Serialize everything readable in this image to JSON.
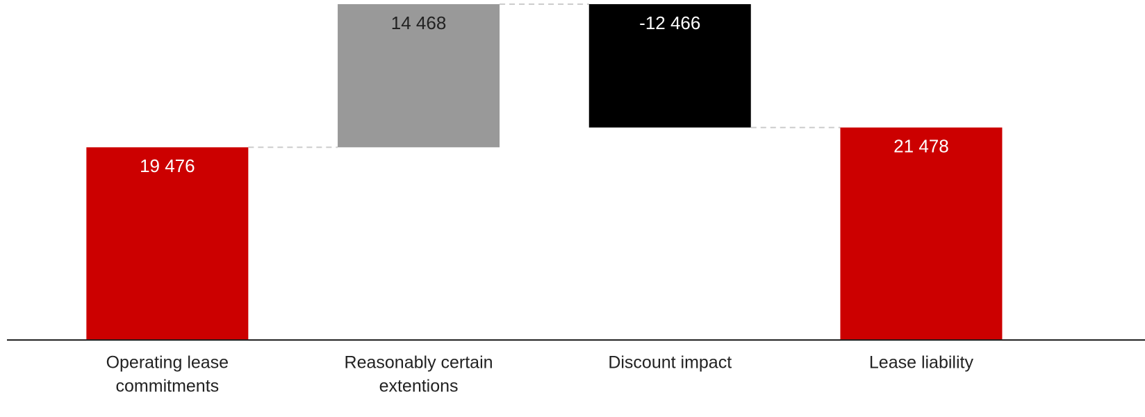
{
  "chart_data": {
    "type": "waterfall",
    "categories": [
      [
        "Operating lease",
        "commitments"
      ],
      [
        "Reasonably certain",
        "extentions"
      ],
      [
        "Discount impact"
      ],
      [
        "Lease liability"
      ]
    ],
    "values": [
      19476,
      14468,
      -12466,
      21478
    ],
    "value_labels": [
      "19 476",
      "14 468",
      "-12 466",
      "21 478"
    ],
    "bar_types": [
      "total",
      "delta",
      "delta",
      "total"
    ],
    "colors": [
      "#cc0000",
      "#999999",
      "#000000",
      "#cc0000"
    ]
  }
}
